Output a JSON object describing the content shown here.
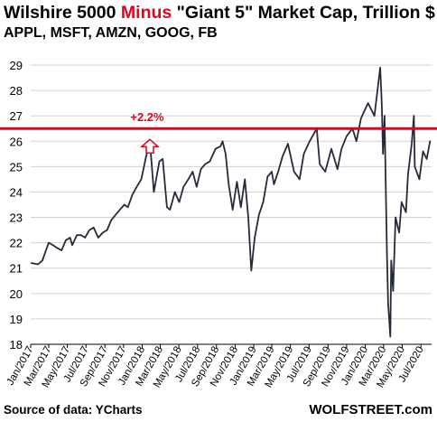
{
  "header": {
    "title_part1": "Wilshire 5000 ",
    "title_highlight": "Minus",
    "title_part2": " \"Giant 5\" Market Cap, Trillion $",
    "subtitle": "APPL, MSFT, AMZN, GOOG, FB"
  },
  "footer": {
    "source": "Source of data: YCharts",
    "brand": "WOLFSTREET.com"
  },
  "colors": {
    "line": "#262b3a",
    "reference_line": "#e8001c",
    "annotation": "#e8001c",
    "grid": "#d0d0d0"
  },
  "chart_data": {
    "type": "line",
    "title": "Wilshire 5000 Minus \"Giant 5\" Market Cap, Trillion $",
    "subtitle": "APPL, MSFT, AMZN, GOOG, FB",
    "xlabel": "",
    "ylabel": "",
    "ylim": [
      18,
      29
    ],
    "yticks": [
      18,
      19,
      20,
      21,
      22,
      23,
      24,
      25,
      26,
      27,
      28,
      29
    ],
    "xlim": [
      "2017-01-01",
      "2020-08-05"
    ],
    "xticks": [
      "Jan/2017",
      "Mar/2017",
      "May/2017",
      "Jul/2017",
      "Sep/2017",
      "Nov/2017",
      "Jan/2018",
      "Mar/2018",
      "May/2018",
      "Jul/2018",
      "Sep/2018",
      "Nov/2018",
      "Jan/2019",
      "Mar/2019",
      "May/2019",
      "Jul/2019",
      "Sep/2019",
      "Nov/2019",
      "Jan/2020",
      "Mar/2020",
      "May/2020",
      "Jul/2020"
    ],
    "grid": true,
    "reference_line": {
      "y": 26.5
    },
    "annotation": {
      "text": "+2.2%",
      "x": "2018-01-26",
      "y": 26.0
    },
    "series": [
      {
        "points": [
          [
            "2017-01-03",
            21.2
          ],
          [
            "2017-01-25",
            21.15
          ],
          [
            "2017-02-08",
            21.3
          ],
          [
            "2017-02-20",
            21.7
          ],
          [
            "2017-03-01",
            22.0
          ],
          [
            "2017-03-15",
            21.9
          ],
          [
            "2017-03-28",
            21.8
          ],
          [
            "2017-04-12",
            21.7
          ],
          [
            "2017-04-26",
            22.1
          ],
          [
            "2017-05-10",
            22.2
          ],
          [
            "2017-05-17",
            21.9
          ],
          [
            "2017-06-01",
            22.3
          ],
          [
            "2017-06-15",
            22.3
          ],
          [
            "2017-06-28",
            22.2
          ],
          [
            "2017-07-12",
            22.5
          ],
          [
            "2017-07-26",
            22.6
          ],
          [
            "2017-08-10",
            22.2
          ],
          [
            "2017-08-25",
            22.4
          ],
          [
            "2017-09-08",
            22.5
          ],
          [
            "2017-09-22",
            22.9
          ],
          [
            "2017-10-06",
            23.1
          ],
          [
            "2017-10-20",
            23.3
          ],
          [
            "2017-11-03",
            23.5
          ],
          [
            "2017-11-15",
            23.4
          ],
          [
            "2017-11-30",
            23.9
          ],
          [
            "2017-12-14",
            24.2
          ],
          [
            "2017-12-29",
            24.5
          ],
          [
            "2018-01-12",
            25.3
          ],
          [
            "2018-01-26",
            26.0
          ],
          [
            "2018-02-08",
            24.0
          ],
          [
            "2018-02-26",
            25.2
          ],
          [
            "2018-03-09",
            25.3
          ],
          [
            "2018-03-23",
            23.4
          ],
          [
            "2018-04-02",
            23.3
          ],
          [
            "2018-04-18",
            24.0
          ],
          [
            "2018-05-02",
            23.6
          ],
          [
            "2018-05-16",
            24.2
          ],
          [
            "2018-06-01",
            24.5
          ],
          [
            "2018-06-15",
            24.8
          ],
          [
            "2018-06-28",
            24.2
          ],
          [
            "2018-07-12",
            24.9
          ],
          [
            "2018-07-26",
            25.1
          ],
          [
            "2018-08-10",
            25.2
          ],
          [
            "2018-08-29",
            25.7
          ],
          [
            "2018-09-14",
            25.8
          ],
          [
            "2018-09-21",
            26.0
          ],
          [
            "2018-10-01",
            25.5
          ],
          [
            "2018-10-11",
            24.3
          ],
          [
            "2018-10-24",
            23.3
          ],
          [
            "2018-11-07",
            24.4
          ],
          [
            "2018-11-20",
            23.4
          ],
          [
            "2018-12-03",
            24.5
          ],
          [
            "2018-12-14",
            23.0
          ],
          [
            "2018-12-24",
            20.9
          ],
          [
            "2019-01-04",
            22.2
          ],
          [
            "2019-01-18",
            23.1
          ],
          [
            "2019-02-01",
            23.6
          ],
          [
            "2019-02-15",
            24.6
          ],
          [
            "2019-03-01",
            24.8
          ],
          [
            "2019-03-08",
            24.3
          ],
          [
            "2019-03-22",
            24.8
          ],
          [
            "2019-04-05",
            25.4
          ],
          [
            "2019-04-23",
            25.9
          ],
          [
            "2019-05-13",
            24.8
          ],
          [
            "2019-05-31",
            24.5
          ],
          [
            "2019-06-14",
            25.5
          ],
          [
            "2019-07-03",
            26.0
          ],
          [
            "2019-07-26",
            26.5
          ],
          [
            "2019-08-05",
            25.1
          ],
          [
            "2019-08-23",
            24.8
          ],
          [
            "2019-09-12",
            25.7
          ],
          [
            "2019-10-02",
            24.9
          ],
          [
            "2019-10-15",
            25.7
          ],
          [
            "2019-11-01",
            26.2
          ],
          [
            "2019-11-20",
            26.5
          ],
          [
            "2019-12-03",
            26.0
          ],
          [
            "2019-12-18",
            26.9
          ],
          [
            "2020-01-10",
            27.5
          ],
          [
            "2020-01-31",
            27.0
          ],
          [
            "2020-02-19",
            28.9
          ],
          [
            "2020-02-24",
            27.5
          ],
          [
            "2020-02-28",
            25.5
          ],
          [
            "2020-03-04",
            27.0
          ],
          [
            "2020-03-12",
            21.5
          ],
          [
            "2020-03-16",
            19.6
          ],
          [
            "2020-03-23",
            18.3
          ],
          [
            "2020-03-26",
            21.3
          ],
          [
            "2020-04-01",
            20.1
          ],
          [
            "2020-04-09",
            23.0
          ],
          [
            "2020-04-21",
            22.4
          ],
          [
            "2020-04-29",
            23.6
          ],
          [
            "2020-05-13",
            23.2
          ],
          [
            "2020-05-20",
            24.7
          ],
          [
            "2020-06-01",
            25.9
          ],
          [
            "2020-06-08",
            27.0
          ],
          [
            "2020-06-11",
            25.0
          ],
          [
            "2020-06-26",
            24.5
          ],
          [
            "2020-07-08",
            25.6
          ],
          [
            "2020-07-20",
            25.3
          ],
          [
            "2020-07-31",
            26.0
          ]
        ]
      }
    ]
  }
}
